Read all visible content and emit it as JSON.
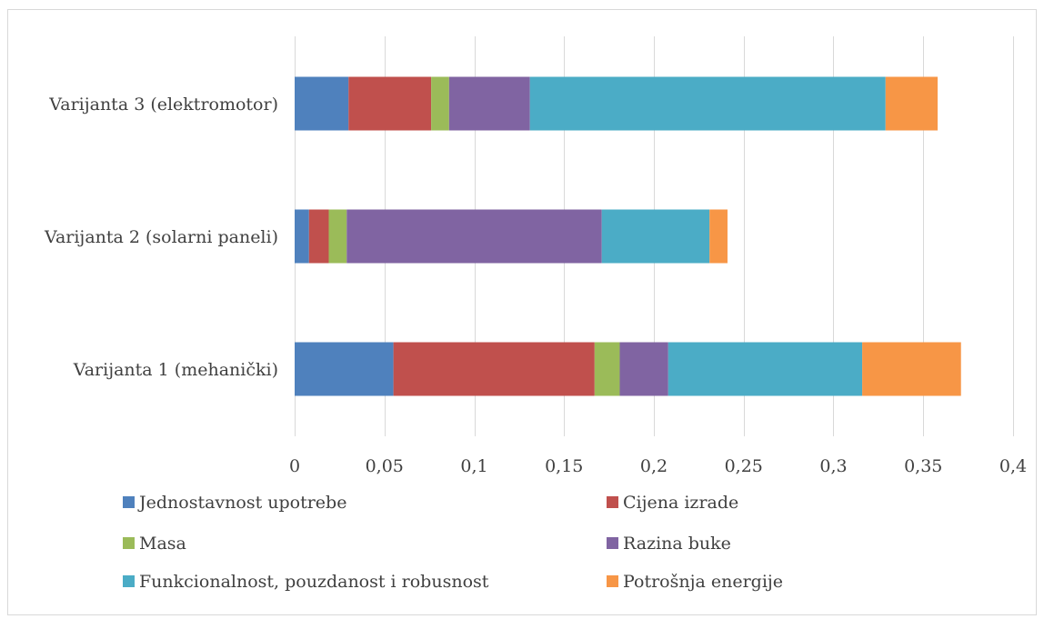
{
  "chart_data": {
    "type": "bar",
    "orientation": "horizontal",
    "stacked": true,
    "categories": [
      "Varijanta 1 (mehanički)",
      "Varijanta 2 (solarni paneli)",
      "Varijanta 3 (elektromotor)"
    ],
    "series": [
      {
        "name": "Jednostavnost upotrebe",
        "color": "#4F81BD",
        "values": [
          0.055,
          0.008,
          0.03
        ]
      },
      {
        "name": "Cijena izrade",
        "color": "#C0504D",
        "values": [
          0.112,
          0.011,
          0.046
        ]
      },
      {
        "name": "Masa",
        "color": "#9BBB59",
        "values": [
          0.014,
          0.01,
          0.01
        ]
      },
      {
        "name": "Razina buke",
        "color": "#8064A2",
        "values": [
          0.027,
          0.142,
          0.045
        ]
      },
      {
        "name": "Funkcionalnost, pouzdanost i robusnost",
        "color": "#4BACC6",
        "values": [
          0.108,
          0.06,
          0.198
        ]
      },
      {
        "name": "Potrošnja energije",
        "color": "#F79646",
        "values": [
          0.055,
          0.01,
          0.029
        ]
      }
    ],
    "xlim": [
      0,
      0.4
    ],
    "x_ticks": [
      0,
      0.05,
      0.1,
      0.15,
      0.2,
      0.25,
      0.3,
      0.35,
      0.4
    ],
    "x_tick_labels": [
      "0",
      "0,05",
      "0,1",
      "0,15",
      "0,2",
      "0,25",
      "0,3",
      "0,35",
      "0,4"
    ],
    "grid": "vertical",
    "legend_position": "bottom"
  }
}
